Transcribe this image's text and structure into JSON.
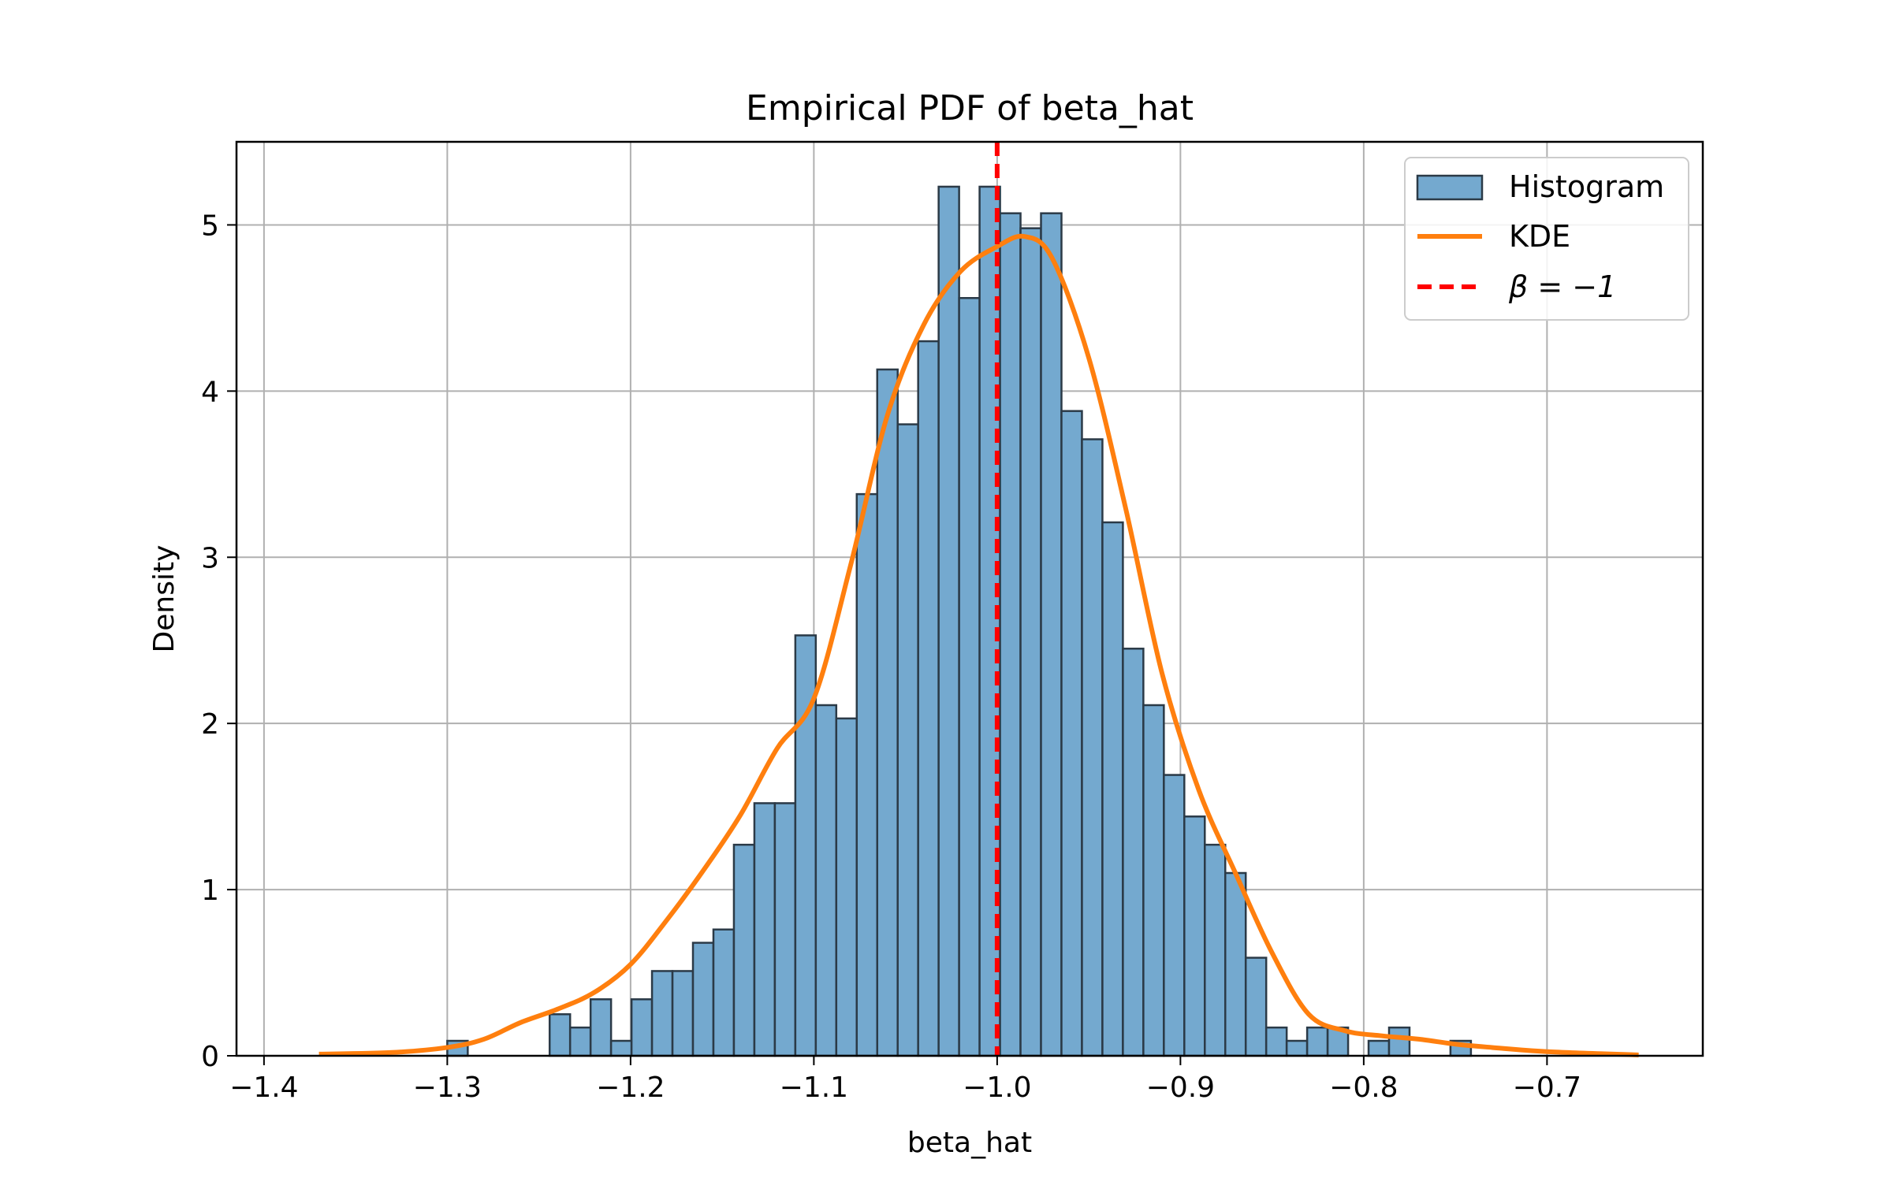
{
  "chart_data": {
    "type": "bar",
    "title": "Empirical PDF of beta_hat",
    "xlabel": "beta_hat",
    "ylabel": "Density",
    "xlim": [
      -1.415,
      -0.615
    ],
    "ylim": [
      0,
      5.5
    ],
    "grid": true,
    "legend_placement": "top-right",
    "x_ticks": [
      -1.4,
      -1.3,
      -1.2,
      -1.1,
      -1.0,
      -0.9,
      -0.8,
      -0.7
    ],
    "x_tick_labels": [
      "−1.4",
      "−1.3",
      "−1.2",
      "−1.1",
      "−1.0",
      "−0.9",
      "−0.8",
      "−0.7"
    ],
    "y_ticks": [
      0,
      1,
      2,
      3,
      4,
      5
    ],
    "y_tick_labels": [
      "0",
      "1",
      "2",
      "3",
      "4",
      "5"
    ],
    "colors": {
      "histogram_fill": "#74a9cf",
      "histogram_edge": "#2b3a47",
      "kde": "#ff7f0e",
      "reference": "#ff0000",
      "grid": "#b0b0b0"
    },
    "histogram": {
      "name": "Histogram",
      "bin_edges_start": -1.3,
      "bin_width": 0.01117,
      "values": [
        0.09,
        0,
        0,
        0,
        0,
        0.25,
        0.17,
        0.34,
        0.09,
        0.34,
        0.51,
        0.51,
        0.68,
        0.76,
        1.27,
        1.52,
        1.52,
        2.53,
        2.11,
        2.03,
        3.38,
        4.13,
        3.8,
        4.3,
        5.23,
        4.56,
        5.23,
        5.07,
        4.98,
        5.07,
        3.88,
        3.71,
        3.21,
        2.45,
        2.11,
        1.69,
        1.44,
        1.27,
        1.1,
        0.59,
        0.17,
        0.09,
        0.17,
        0.17,
        0,
        0.09,
        0.17,
        0,
        0,
        0.09
      ]
    },
    "kde": {
      "name": "KDE",
      "x": [
        -1.37,
        -1.33,
        -1.3,
        -1.28,
        -1.26,
        -1.24,
        -1.22,
        -1.2,
        -1.18,
        -1.16,
        -1.14,
        -1.12,
        -1.1,
        -1.08,
        -1.06,
        -1.04,
        -1.02,
        -1.0,
        -0.985,
        -0.97,
        -0.95,
        -0.93,
        -0.91,
        -0.89,
        -0.87,
        -0.85,
        -0.83,
        -0.81,
        -0.79,
        -0.77,
        -0.75,
        -0.73,
        -0.7,
        -0.65
      ],
      "y": [
        0.01,
        0.02,
        0.05,
        0.1,
        0.2,
        0.28,
        0.38,
        0.55,
        0.82,
        1.12,
        1.45,
        1.85,
        2.15,
        2.95,
        3.85,
        4.4,
        4.72,
        4.87,
        4.93,
        4.8,
        4.2,
        3.3,
        2.3,
        1.6,
        1.1,
        0.62,
        0.25,
        0.15,
        0.12,
        0.1,
        0.07,
        0.05,
        0.025,
        0.005
      ]
    },
    "reference_line": {
      "label": "β = −1",
      "x": -1.0
    }
  }
}
